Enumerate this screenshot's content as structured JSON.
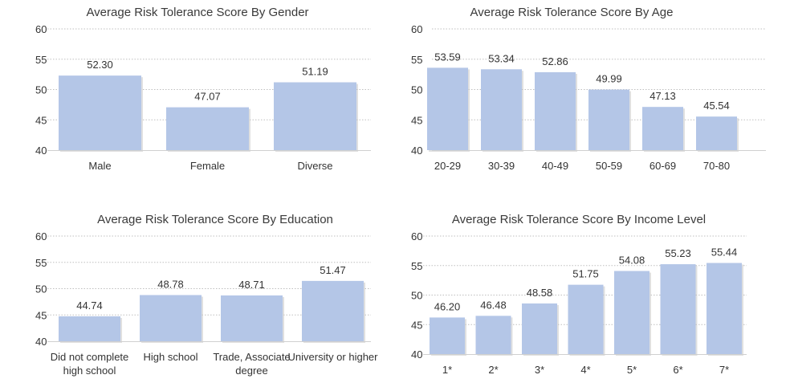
{
  "colors": {
    "bar": "#b4c6e7",
    "bar_shadow": "#c7c7c7",
    "grid": "#bfbfbf",
    "text": "#333333"
  },
  "chart_data": [
    {
      "type": "bar",
      "title": "Average Risk Tolerance Score By Gender",
      "categories": [
        "Male",
        "Female",
        "Diverse"
      ],
      "values": [
        52.3,
        47.07,
        51.19
      ],
      "value_labels": [
        "52.30",
        "47.07",
        "51.19"
      ],
      "ylim": [
        40,
        60
      ],
      "yticks": [
        "40",
        "45",
        "50",
        "55",
        "60"
      ],
      "grid": true
    },
    {
      "type": "bar",
      "title": "Average Risk Tolerance Score By Age",
      "categories": [
        "20-29",
        "30-39",
        "40-49",
        "50-59",
        "60-69",
        "70-80"
      ],
      "values": [
        53.59,
        53.34,
        52.86,
        49.99,
        47.13,
        45.54
      ],
      "value_labels": [
        "53.59",
        "53.34",
        "52.86",
        "49.99",
        "47.13",
        "45.54"
      ],
      "ylim": [
        40,
        60
      ],
      "yticks": [
        "40",
        "45",
        "50",
        "55",
        "60"
      ],
      "grid": true
    },
    {
      "type": "bar",
      "title": "Average Risk Tolerance Score By Education",
      "categories": [
        [
          "Did not complete",
          "high school"
        ],
        [
          "High school"
        ],
        [
          "Trade, Associate",
          "degree"
        ],
        [
          "University or higher"
        ]
      ],
      "values": [
        44.74,
        48.78,
        48.71,
        51.47
      ],
      "value_labels": [
        "44.74",
        "48.78",
        "48.71",
        "51.47"
      ],
      "ylim": [
        40,
        60
      ],
      "yticks": [
        "40",
        "45",
        "50",
        "55",
        "60"
      ],
      "grid": true
    },
    {
      "type": "bar",
      "title": "Average Risk Tolerance Score By Income Level",
      "categories": [
        "1*",
        "2*",
        "3*",
        "4*",
        "5*",
        "6*",
        "7*"
      ],
      "values": [
        46.2,
        46.48,
        48.58,
        51.75,
        54.08,
        55.23,
        55.44
      ],
      "value_labels": [
        "46.20",
        "46.48",
        "48.58",
        "51.75",
        "54.08",
        "55.23",
        "55.44"
      ],
      "ylim": [
        40,
        60
      ],
      "yticks": [
        "40",
        "45",
        "50",
        "55",
        "60"
      ],
      "grid": true
    }
  ]
}
